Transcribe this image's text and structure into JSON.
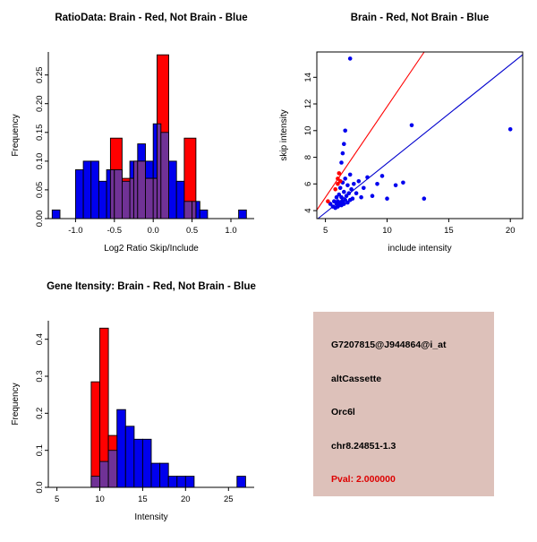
{
  "page": {
    "background": "#ffffff"
  },
  "chart_data": [
    {
      "type": "histogram",
      "title": "RatioData: Brain - Red, Not Brain - Blue",
      "xlabel": "Log2 Ratio Skip/Include",
      "ylabel": "Frequency",
      "xlim": [
        -1.35,
        1.3
      ],
      "ylim": [
        0,
        0.29
      ],
      "xticks": [
        -1.0,
        -0.5,
        0.0,
        0.5,
        1.0
      ],
      "xtick_labels": [
        "-1.0",
        "-0.5",
        "0.0",
        "0.5",
        "1.0"
      ],
      "yticks": [
        0,
        0.05,
        0.1,
        0.15,
        0.2,
        0.25
      ],
      "ytick_labels": [
        "0.00",
        "0.05",
        "0.10",
        "0.15",
        "0.20",
        "0.25"
      ],
      "box": false,
      "overlap_color": "#703296",
      "series": [
        {
          "name": "Not Brain",
          "color": "#0000EE",
          "bin_width": 0.1,
          "bins": [
            {
              "x": -1.3,
              "h": 0.015
            },
            {
              "x": -1.0,
              "h": 0.085
            },
            {
              "x": -0.9,
              "h": 0.1
            },
            {
              "x": -0.8,
              "h": 0.1
            },
            {
              "x": -0.7,
              "h": 0.065
            },
            {
              "x": -0.6,
              "h": 0.085
            },
            {
              "x": -0.5,
              "h": 0.085
            },
            {
              "x": -0.4,
              "h": 0.065
            },
            {
              "x": -0.3,
              "h": 0.1
            },
            {
              "x": -0.2,
              "h": 0.13
            },
            {
              "x": -0.1,
              "h": 0.1
            },
            {
              "x": 0.0,
              "h": 0.165
            },
            {
              "x": 0.1,
              "h": 0.15
            },
            {
              "x": 0.2,
              "h": 0.1
            },
            {
              "x": 0.3,
              "h": 0.065
            },
            {
              "x": 0.4,
              "h": 0.03
            },
            {
              "x": 0.5,
              "h": 0.03
            },
            {
              "x": 0.6,
              "h": 0.015
            },
            {
              "x": 1.1,
              "h": 0.015
            }
          ]
        },
        {
          "name": "Brain",
          "color": "#FF0000",
          "bin_width": 0.15,
          "bins": [
            {
              "x": -0.55,
              "h": 0.14
            },
            {
              "x": -0.4,
              "h": 0.07
            },
            {
              "x": -0.25,
              "h": 0.1
            },
            {
              "x": -0.1,
              "h": 0.07
            },
            {
              "x": 0.05,
              "h": 0.285
            },
            {
              "x": 0.4,
              "h": 0.14
            }
          ]
        }
      ]
    },
    {
      "type": "scatter",
      "title": "Brain - Red, Not Brain - Blue",
      "xlabel": "include intensity",
      "ylabel": "skip intensity",
      "xlim": [
        4.3,
        21
      ],
      "ylim": [
        3.4,
        15.9
      ],
      "xticks": [
        5,
        10,
        15,
        20
      ],
      "xtick_labels": [
        "5",
        "10",
        "15",
        "20"
      ],
      "yticks": [
        4,
        6,
        8,
        10,
        12,
        14
      ],
      "ytick_labels": [
        "4",
        "6",
        "8",
        "10",
        "12",
        "14"
      ],
      "box": true,
      "points": [
        {
          "name": "Not Brain",
          "color": "#0000EE",
          "pts": [
            [
              5.4,
              4.5
            ],
            [
              5.6,
              4.3
            ],
            [
              5.7,
              4.7
            ],
            [
              5.8,
              4.2
            ],
            [
              5.9,
              4.5
            ],
            [
              5.9,
              5.0
            ],
            [
              6.0,
              4.3
            ],
            [
              6.0,
              4.7
            ],
            [
              6.1,
              4.4
            ],
            [
              6.1,
              5.2
            ],
            [
              6.2,
              4.6
            ],
            [
              6.2,
              5.7
            ],
            [
              6.3,
              4.4
            ],
            [
              6.3,
              5.0
            ],
            [
              6.3,
              7.6
            ],
            [
              6.4,
              4.7
            ],
            [
              6.4,
              6.1
            ],
            [
              6.4,
              8.3
            ],
            [
              6.5,
              4.5
            ],
            [
              6.5,
              5.4
            ],
            [
              6.5,
              9.0
            ],
            [
              6.6,
              4.8
            ],
            [
              6.6,
              6.4
            ],
            [
              6.6,
              10.0
            ],
            [
              6.7,
              5.1
            ],
            [
              6.8,
              4.6
            ],
            [
              6.8,
              5.9
            ],
            [
              6.9,
              5.3
            ],
            [
              7.0,
              4.8
            ],
            [
              7.0,
              6.7
            ],
            [
              7.0,
              15.4
            ],
            [
              7.1,
              5.6
            ],
            [
              7.2,
              4.9
            ],
            [
              7.3,
              6.0
            ],
            [
              7.5,
              5.3
            ],
            [
              7.7,
              6.2
            ],
            [
              7.9,
              5.0
            ],
            [
              8.1,
              5.7
            ],
            [
              8.4,
              6.5
            ],
            [
              8.8,
              5.1
            ],
            [
              9.2,
              6.0
            ],
            [
              9.6,
              6.6
            ],
            [
              10.0,
              4.9
            ],
            [
              10.7,
              5.9
            ],
            [
              11.3,
              6.1
            ],
            [
              12.0,
              10.4
            ],
            [
              13.0,
              4.9
            ],
            [
              20.0,
              10.1
            ]
          ]
        },
        {
          "name": "Brain",
          "color": "#FF0000",
          "pts": [
            [
              5.2,
              4.7
            ],
            [
              5.8,
              5.6
            ],
            [
              6.0,
              6.0
            ],
            [
              6.0,
              6.4
            ],
            [
              6.1,
              6.8
            ],
            [
              6.2,
              6.2
            ]
          ]
        }
      ],
      "lines": [
        {
          "name": "brain-fit-line",
          "color": "#FF0000",
          "slope": 1.36,
          "intercept": -1.8
        },
        {
          "name": "notbrain-fit-line",
          "color": "#0000CD",
          "slope": 0.74,
          "intercept": 0.15
        }
      ]
    },
    {
      "type": "histogram",
      "title": "Gene Itensity: Brain - Red, Not Brain - Blue",
      "xlabel": "Intensity",
      "ylabel": "Frequency",
      "xlim": [
        4,
        28
      ],
      "ylim": [
        0,
        0.45
      ],
      "xticks": [
        5,
        10,
        15,
        20,
        25
      ],
      "xtick_labels": [
        "5",
        "10",
        "15",
        "20",
        "25"
      ],
      "yticks": [
        0,
        0.1,
        0.2,
        0.3,
        0.4
      ],
      "ytick_labels": [
        "0.0",
        "0.1",
        "0.2",
        "0.3",
        "0.4"
      ],
      "box": false,
      "overlap_color": "#703296",
      "series": [
        {
          "name": "Not Brain",
          "color": "#0000EE",
          "bin_width": 1,
          "bins": [
            {
              "x": 9,
              "h": 0.03
            },
            {
              "x": 10,
              "h": 0.07
            },
            {
              "x": 11,
              "h": 0.1
            },
            {
              "x": 12,
              "h": 0.21
            },
            {
              "x": 13,
              "h": 0.165
            },
            {
              "x": 14,
              "h": 0.13
            },
            {
              "x": 15,
              "h": 0.13
            },
            {
              "x": 16,
              "h": 0.065
            },
            {
              "x": 17,
              "h": 0.065
            },
            {
              "x": 18,
              "h": 0.03
            },
            {
              "x": 19,
              "h": 0.03
            },
            {
              "x": 20,
              "h": 0.03
            },
            {
              "x": 26,
              "h": 0.03
            }
          ]
        },
        {
          "name": "Brain",
          "color": "#FF0000",
          "bin_width": 1,
          "bins": [
            {
              "x": 9,
              "h": 0.285
            },
            {
              "x": 10,
              "h": 0.43
            },
            {
              "x": 11,
              "h": 0.14
            }
          ]
        }
      ]
    }
  ],
  "info": {
    "bg": "#ddc1ba",
    "lines": [
      {
        "text": "G7207815@J944864@i_at",
        "color": "#000000"
      },
      {
        "text": "altCassette",
        "color": "#000000"
      },
      {
        "text": "Orc6l",
        "color": "#000000"
      },
      {
        "text": "chr8.24851-1.3",
        "color": "#000000"
      },
      {
        "text": "Pval: 2.000000",
        "color": "#DD0000"
      }
    ]
  }
}
